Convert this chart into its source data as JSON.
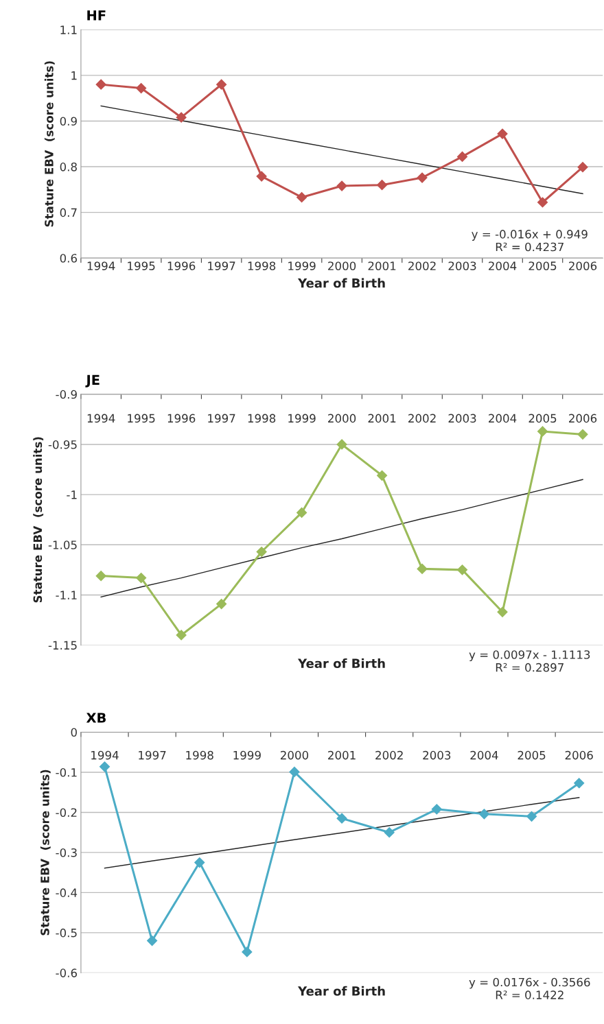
{
  "chart_data": [
    {
      "type": "line",
      "title": "HF",
      "xlabel": "Year of Birth",
      "ylabel": "Stature EBV  (score units)",
      "categories": [
        "1994",
        "1995",
        "1996",
        "1997",
        "1998",
        "1999",
        "2000",
        "2001",
        "2002",
        "2003",
        "2004",
        "2005",
        "2006"
      ],
      "ylim": [
        0.6,
        1.1
      ],
      "yticks": [
        {
          "value": 0.6,
          "label": "0.6"
        },
        {
          "value": 0.7,
          "label": "0.7"
        },
        {
          "value": 0.8,
          "label": "0.8"
        },
        {
          "value": 0.9,
          "label": "0.9"
        },
        {
          "value": 1,
          "label": "1"
        },
        {
          "value": 1.1,
          "label": "1.1"
        }
      ],
      "grid": "y",
      "legend": false,
      "marker": "diamond",
      "series": [
        {
          "color": "#c0504d",
          "values": [
            0.98,
            0.972,
            0.908,
            0.98,
            0.779,
            0.733,
            0.758,
            0.76,
            0.776,
            0.822,
            0.872,
            0.722,
            0.799
          ]
        },
        {
          "type": "line",
          "color": "#222222",
          "marker": "none",
          "values": [
            0.933,
            0.917,
            0.901,
            0.885,
            0.869,
            0.853,
            0.837,
            0.821,
            0.805,
            0.789,
            0.773,
            0.757,
            0.741
          ]
        }
      ],
      "annotations": [
        "y = -0.016x + 0.949\nR² = 0.4237"
      ]
    },
    {
      "type": "line",
      "title": "JE",
      "xlabel": "Year of Birth",
      "ylabel": "Stature EBV  (score units)",
      "categories": [
        "1994",
        "1995",
        "1996",
        "1997",
        "1998",
        "1999",
        "2000",
        "2001",
        "2002",
        "2003",
        "2004",
        "2005",
        "2006"
      ],
      "ylim": [
        -1.15,
        -0.9
      ],
      "yticks": [
        {
          "value": -1.15,
          "label": "-1.15"
        },
        {
          "value": -1.1,
          "label": "-1.1"
        },
        {
          "value": -1.05,
          "label": "-1.05"
        },
        {
          "value": -1,
          "label": "-1"
        },
        {
          "value": -0.95,
          "label": "-0.95"
        },
        {
          "value": -0.9,
          "label": "-0.9"
        }
      ],
      "grid": "y",
      "legend": false,
      "marker": "diamond",
      "series": [
        {
          "color": "#9bbb59",
          "values": [
            -1.081,
            -1.083,
            -1.14,
            -1.109,
            -1.057,
            -1.018,
            -0.95,
            -0.981,
            -1.074,
            -1.075,
            -1.117,
            -0.937,
            -0.94
          ]
        },
        {
          "type": "line",
          "color": "#222222",
          "marker": "none",
          "values": [
            -1.102,
            -1.092,
            -1.083,
            -1.073,
            -1.063,
            -1.053,
            -1.044,
            -1.034,
            -1.024,
            -1.015,
            -1.005,
            -0.995,
            -0.985
          ]
        }
      ],
      "annotations": [
        "y = 0.0097x - 1.1113\nR² = 0.2897"
      ]
    },
    {
      "type": "line",
      "title": "XB",
      "xlabel": "Year of Birth",
      "ylabel": "Stature EBV  (score units)",
      "categories": [
        "1994",
        "1997",
        "1998",
        "1999",
        "2000",
        "2001",
        "2002",
        "2003",
        "2004",
        "2005",
        "2006"
      ],
      "ylim": [
        -0.6,
        0
      ],
      "yticks": [
        {
          "value": -0.6,
          "label": "-0.6"
        },
        {
          "value": -0.5,
          "label": "-0.5"
        },
        {
          "value": -0.4,
          "label": "-0.4"
        },
        {
          "value": -0.3,
          "label": "-0.3"
        },
        {
          "value": -0.2,
          "label": "-0.2"
        },
        {
          "value": -0.1,
          "label": "-0.1"
        },
        {
          "value": 0,
          "label": "0"
        }
      ],
      "grid": "y",
      "legend": false,
      "marker": "diamond",
      "series": [
        {
          "color": "#4bacc6",
          "values": [
            -0.086,
            -0.52,
            -0.325,
            -0.548,
            -0.099,
            -0.215,
            -0.25,
            -0.192,
            -0.204,
            -0.21,
            -0.127
          ]
        },
        {
          "type": "line",
          "color": "#222222",
          "marker": "none",
          "values": [
            -0.339,
            -0.321,
            -0.304,
            -0.286,
            -0.268,
            -0.251,
            -0.233,
            -0.216,
            -0.198,
            -0.18,
            -0.163
          ]
        }
      ],
      "annotations": [
        "y = 0.0176x - 0.3566\nR² = 0.1422"
      ]
    }
  ]
}
